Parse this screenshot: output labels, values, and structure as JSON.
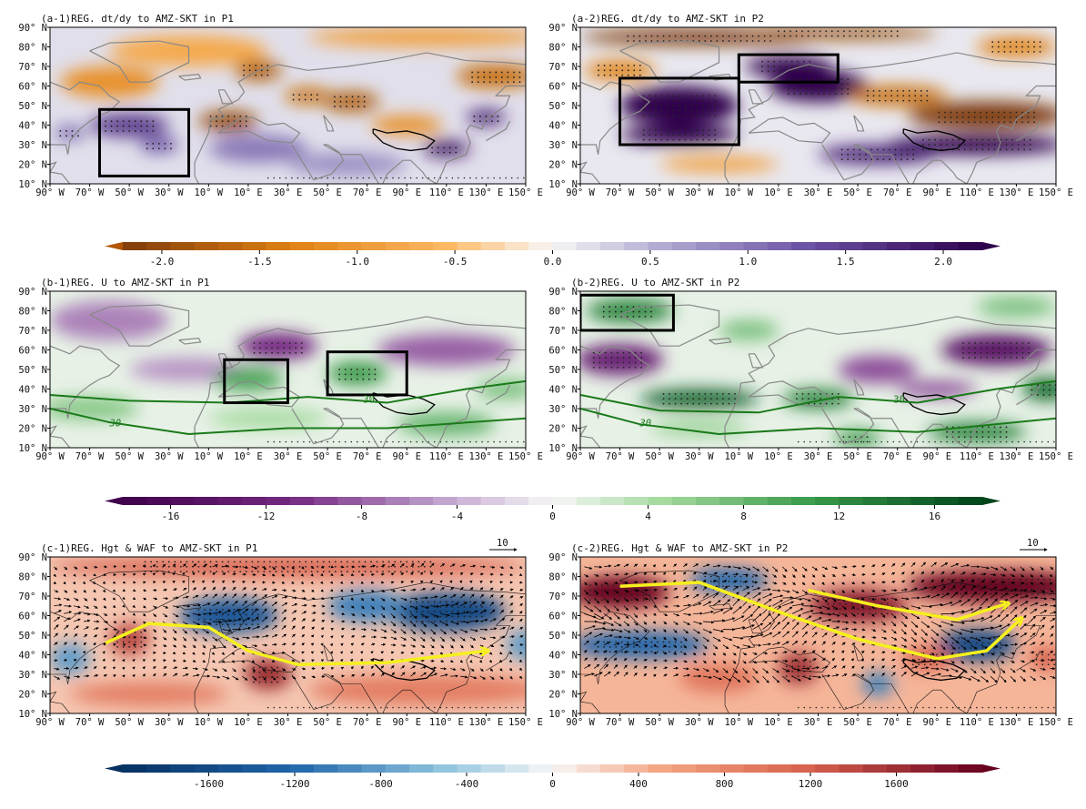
{
  "figure": {
    "rows": [
      {
        "id": "a",
        "colorbar": {
          "ticks": [
            "-2.0",
            "-1.5",
            "-1.0",
            "-0.5",
            "0.0",
            "0.5",
            "1.0",
            "1.5",
            "2.0"
          ],
          "values": [
            -2,
            -1.5,
            -1,
            -0.5,
            0,
            0.5,
            1,
            1.5,
            2
          ],
          "range": [
            -2.2,
            2.2
          ],
          "colormap": "PuOr",
          "neg_color": "#b35806",
          "pos_color": "#2d004b"
        }
      },
      {
        "id": "b",
        "colorbar": {
          "ticks": [
            "-16",
            "-12",
            "-8",
            "-4",
            "0",
            "4",
            "8",
            "12",
            "16"
          ],
          "values": [
            -16,
            -12,
            -8,
            -4,
            0,
            4,
            8,
            12,
            16
          ],
          "range": [
            -18,
            18
          ],
          "colormap": "PRGn",
          "neg_color": "#40004b",
          "pos_color": "#00441b"
        }
      },
      {
        "id": "c",
        "colorbar": {
          "ticks": [
            "-1600",
            "-1200",
            "-800",
            "-400",
            "0",
            "400",
            "800",
            "1200",
            "1600"
          ],
          "values": [
            -1600,
            -1200,
            -800,
            -400,
            0,
            400,
            800,
            1200,
            1600
          ],
          "range": [
            -2000,
            2000
          ],
          "colormap": "RdBu_r",
          "neg_color": "#053061",
          "pos_color": "#67001f"
        }
      }
    ],
    "panels": [
      {
        "row": "a",
        "col": 0,
        "title": "(a-1)REG. dt/dy to AMZ-SKT in P1",
        "boxes": [
          [
            -65,
            -20,
            14,
            48
          ]
        ]
      },
      {
        "row": "a",
        "col": 1,
        "title": "(a-2)REG. dt/dy to AMZ-SKT in P2",
        "boxes": [
          [
            -70,
            -10,
            30,
            64
          ],
          [
            -10,
            40,
            62,
            76
          ]
        ]
      },
      {
        "row": "b",
        "col": 0,
        "title": "(b-1)REG. U to AMZ-SKT in P1",
        "boxes": [
          [
            -2,
            30,
            33,
            55
          ],
          [
            50,
            90,
            37,
            59
          ]
        ],
        "contour_label": "30"
      },
      {
        "row": "b",
        "col": 1,
        "title": "(b-2)REG. U to AMZ-SKT in P2",
        "boxes": [
          [
            -90,
            -43,
            70,
            88
          ]
        ],
        "contour_label": "30"
      },
      {
        "row": "c",
        "col": 0,
        "title": "(c-1)REG. Hgt & WAF to AMZ-SKT in P1",
        "ref_vector": "10"
      },
      {
        "row": "c",
        "col": 1,
        "title": "(c-2)REG. Hgt & WAF to AMZ-SKT in P2",
        "ref_vector": "10"
      }
    ],
    "lat_ticks": [
      "90° N",
      "80° N",
      "70° N",
      "60° N",
      "50° N",
      "40° N",
      "30° N",
      "20° N",
      "10° N"
    ],
    "lon_ticks": [
      "90° W",
      "70° W",
      "50° W",
      "30° W",
      "10° W",
      "10° E",
      "30° E",
      "50° E",
      "70° E",
      "90° E",
      "110° E",
      "130° E",
      "150° E"
    ],
    "lon_range": [
      -90,
      150
    ],
    "lat_range": [
      10,
      90
    ],
    "colors": {
      "coast": "#888888",
      "box": "#000000",
      "jet": "#1a7a1a",
      "waf_path": "#f5f01e"
    }
  }
}
